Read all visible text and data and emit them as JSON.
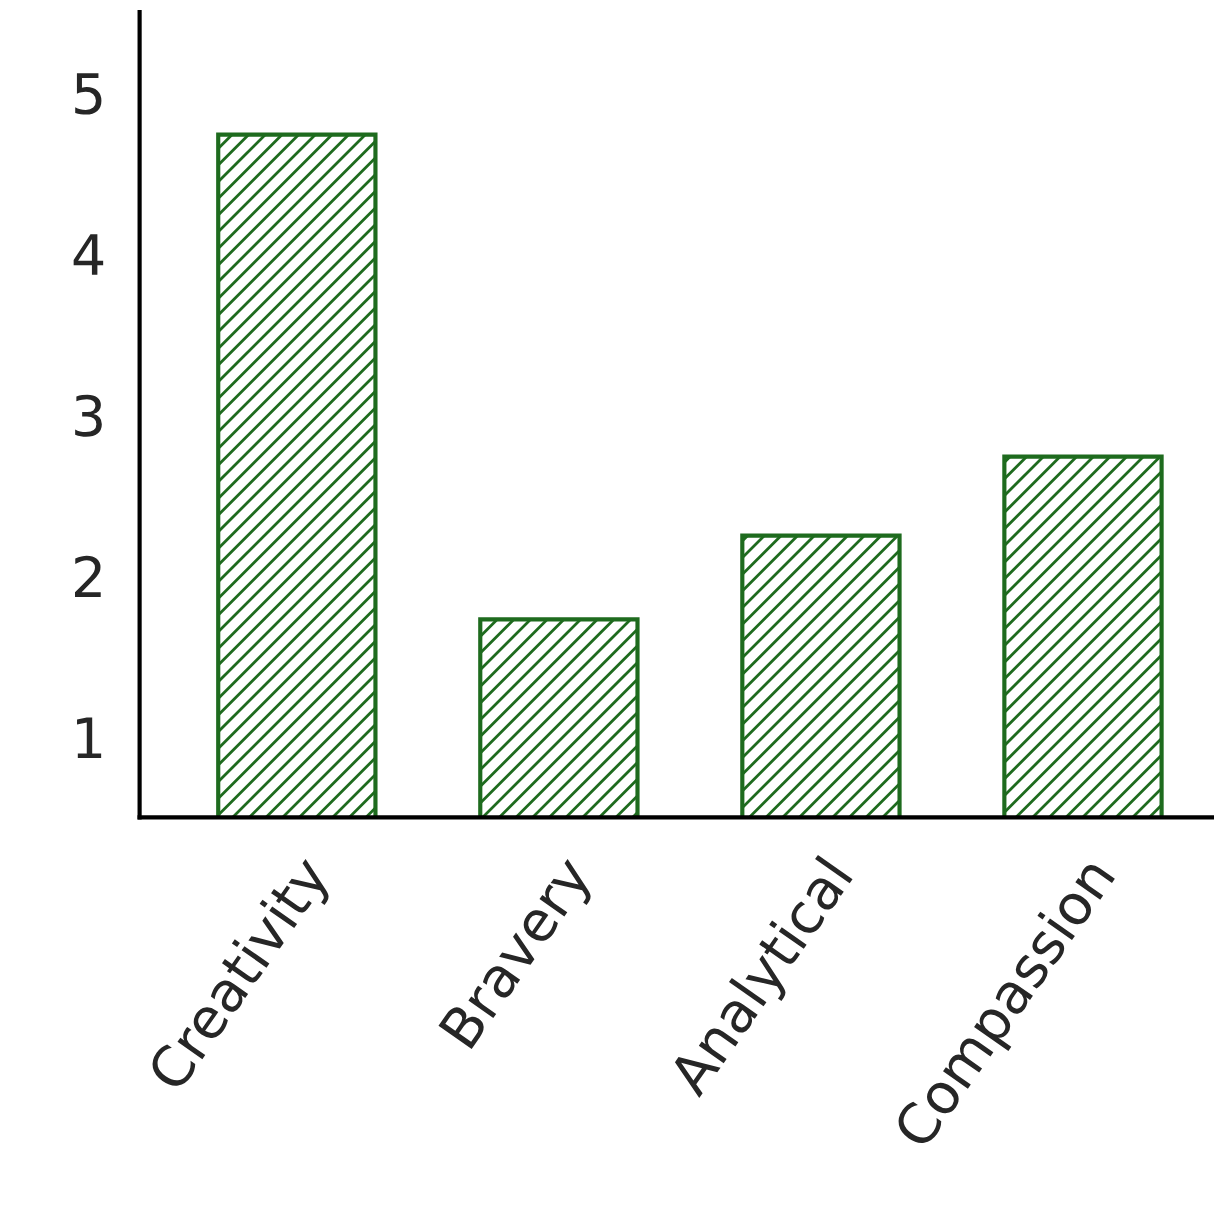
{
  "chart_data": {
    "type": "bar",
    "categories": [
      "Creativity",
      "Bravery",
      "Analytical",
      "Compassion"
    ],
    "values": [
      4.74,
      1.73,
      2.25,
      2.74
    ],
    "color": "#1e6b1e",
    "ylim": [
      0.5,
      5.5
    ],
    "yticks": [
      1,
      2,
      3,
      4,
      5
    ],
    "grid": false,
    "legend": false
  }
}
